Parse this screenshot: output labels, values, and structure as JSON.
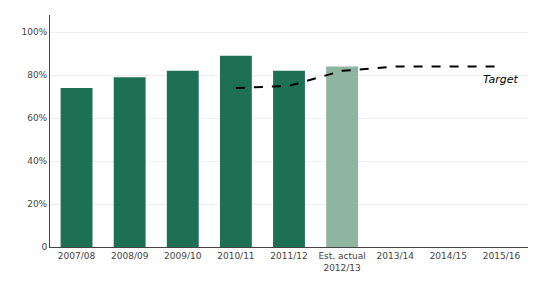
{
  "chart_data": {
    "type": "bar",
    "categories": [
      "2007/08",
      "2008/09",
      "2009/10",
      "2010/11",
      "2011/12",
      "Est. actual\n2012/13",
      "2013/14",
      "2014/15",
      "2015/16"
    ],
    "series": [
      {
        "type": "bar",
        "colors": [
          "#1e7055",
          "#1e7055",
          "#1e7055",
          "#1e7055",
          "#1e7055",
          "#8fb4a0",
          null,
          null,
          null
        ],
        "values": [
          0.74,
          0.79,
          0.82,
          0.89,
          0.82,
          0.84,
          null,
          null,
          null
        ]
      },
      {
        "type": "line",
        "color": "#000000",
        "line_style": "dashed",
        "marker": "none",
        "values": [
          null,
          null,
          null,
          0.74,
          0.75,
          0.82,
          0.84,
          0.84,
          0.84
        ]
      }
    ],
    "annotations": [
      {
        "text": "Target"
      }
    ],
    "ylim": [
      0,
      1.08
    ],
    "yticks": [
      0,
      {
        "value": 0.2,
        "label": "20%"
      },
      {
        "value": 0.4,
        "label": "40%"
      },
      {
        "value": 0.6,
        "label": "60%"
      },
      {
        "value": 0.8,
        "label": "80%"
      },
      {
        "value": 1.0,
        "label": "100%"
      }
    ],
    "grid": true
  }
}
